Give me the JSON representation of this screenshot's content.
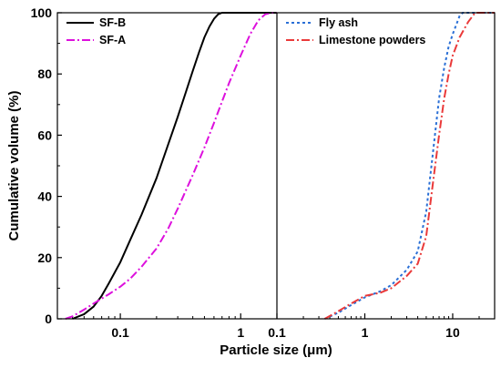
{
  "chart_data": {
    "type": "line",
    "ylabel": "Cumulative volume (%)",
    "xlabel": "Particle size (μm)",
    "ylim": [
      0,
      100
    ],
    "yticks": [
      0,
      20,
      40,
      60,
      80,
      100
    ],
    "grid": false,
    "panels": [
      {
        "xscale": "log",
        "xlim": [
          0.03,
          2.0
        ],
        "xticks": [
          0.1,
          1
        ],
        "xtick_labels": [
          "0.1",
          "1"
        ],
        "legend_position": "top-left",
        "series": [
          {
            "name": "SF-B",
            "color": "#000000",
            "dash": "solid",
            "points": [
              [
                0.04,
                0
              ],
              [
                0.05,
                1.5
              ],
              [
                0.06,
                4
              ],
              [
                0.07,
                7.5
              ],
              [
                0.08,
                11.5
              ],
              [
                0.1,
                18.5
              ],
              [
                0.12,
                25.5
              ],
              [
                0.15,
                34
              ],
              [
                0.2,
                46
              ],
              [
                0.25,
                57
              ],
              [
                0.3,
                66
              ],
              [
                0.35,
                74
              ],
              [
                0.4,
                81
              ],
              [
                0.45,
                87
              ],
              [
                0.5,
                92
              ],
              [
                0.55,
                95.5
              ],
              [
                0.6,
                98
              ],
              [
                0.65,
                99.5
              ],
              [
                0.7,
                100
              ],
              [
                2.0,
                100
              ]
            ]
          },
          {
            "name": "SF-A",
            "color": "#dd10dd",
            "dash": "dashdot",
            "points": [
              [
                0.035,
                0
              ],
              [
                0.04,
                0.8
              ],
              [
                0.05,
                3
              ],
              [
                0.06,
                5
              ],
              [
                0.08,
                8
              ],
              [
                0.1,
                10.5
              ],
              [
                0.12,
                13
              ],
              [
                0.15,
                17
              ],
              [
                0.2,
                23
              ],
              [
                0.25,
                29.5
              ],
              [
                0.3,
                36
              ],
              [
                0.4,
                47
              ],
              [
                0.5,
                56
              ],
              [
                0.6,
                64
              ],
              [
                0.7,
                71
              ],
              [
                0.8,
                77
              ],
              [
                1.0,
                86
              ],
              [
                1.2,
                93
              ],
              [
                1.4,
                97.5
              ],
              [
                1.6,
                99.5
              ],
              [
                1.8,
                100
              ],
              [
                2.0,
                100
              ]
            ]
          }
        ]
      },
      {
        "xscale": "log",
        "xlim": [
          0.1,
          30
        ],
        "xticks": [
          0.1,
          1,
          10
        ],
        "xtick_labels": [
          "0.1",
          "1",
          "10"
        ],
        "legend_position": "top-left",
        "series": [
          {
            "name": "Fly ash",
            "color": "#2a6fd6",
            "dash": "dot",
            "points": [
              [
                0.35,
                0
              ],
              [
                0.5,
                2
              ],
              [
                0.7,
                4.5
              ],
              [
                1.0,
                7
              ],
              [
                1.5,
                9
              ],
              [
                2.0,
                11
              ],
              [
                3.0,
                16
              ],
              [
                4.0,
                22
              ],
              [
                5.0,
                35
              ],
              [
                6.0,
                55
              ],
              [
                7.0,
                72
              ],
              [
                8.0,
                82
              ],
              [
                9.0,
                89
              ],
              [
                10.0,
                93
              ],
              [
                12.0,
                99
              ],
              [
                13.0,
                100
              ],
              [
                30,
                100
              ]
            ]
          },
          {
            "name": "Limestone powders",
            "color": "#ea3a3a",
            "dash": "dashdot",
            "points": [
              [
                0.35,
                0
              ],
              [
                0.5,
                2.5
              ],
              [
                0.7,
                5
              ],
              [
                1.0,
                7.5
              ],
              [
                1.5,
                8.5
              ],
              [
                2.0,
                10
              ],
              [
                3.0,
                14
              ],
              [
                4.0,
                18
              ],
              [
                5.0,
                27
              ],
              [
                6.0,
                45
              ],
              [
                7.0,
                60
              ],
              [
                8.0,
                72
              ],
              [
                9.0,
                80
              ],
              [
                10.0,
                86
              ],
              [
                12.0,
                92
              ],
              [
                15.0,
                97
              ],
              [
                18.0,
                100
              ],
              [
                30,
                100
              ]
            ]
          }
        ]
      }
    ]
  }
}
